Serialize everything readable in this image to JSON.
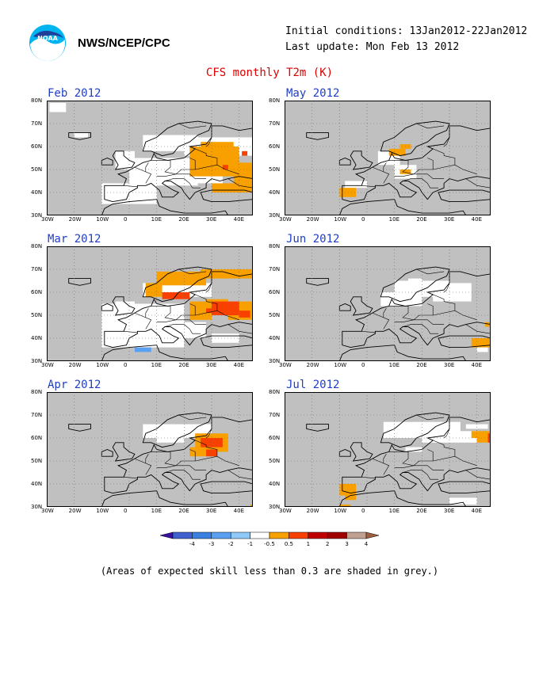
{
  "header": {
    "agency": "NWS/NCEP/CPC",
    "initial_conditions": "Initial conditions: 13Jan2012-22Jan2012",
    "last_update": "Last update: Mon Feb 13 2012",
    "title": "CFS monthly T2m (K)",
    "logo_icon": "noaa-logo-icon"
  },
  "axes": {
    "lat_ticks": [
      "80N",
      "70N",
      "60N",
      "50N",
      "40N",
      "30N"
    ],
    "lon_ticks": [
      "30W",
      "20W",
      "10W",
      "0",
      "10E",
      "20E",
      "30E",
      "40E"
    ]
  },
  "panels": [
    {
      "title": "Feb 2012"
    },
    {
      "title": "May 2012"
    },
    {
      "title": "Mar 2012"
    },
    {
      "title": "Jun 2012"
    },
    {
      "title": "Apr 2012"
    },
    {
      "title": "Jul 2012"
    }
  ],
  "colorbar": {
    "labels": [
      "-4",
      "-3",
      "-2",
      "-1",
      "-0.5",
      "0.5",
      "1",
      "2",
      "3",
      "4"
    ],
    "colors": [
      "#3a10a0",
      "#4060d0",
      "#3a80e0",
      "#5aa0f0",
      "#90c8f8",
      "#ffffff",
      "#f8a000",
      "#f84000",
      "#c00000",
      "#a00000",
      "#c0a090",
      "#a06040"
    ]
  },
  "colors": {
    "skill_mask_grey": "#c0c0c0",
    "title_red": "#e00000",
    "panel_title_blue": "#1f3ec8"
  },
  "note": "(Areas of expected skill less than 0.3 are shaded in grey.)"
}
